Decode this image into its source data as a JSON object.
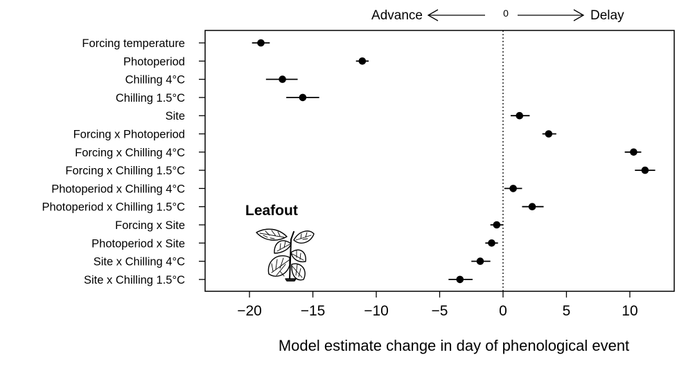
{
  "chart_data": {
    "type": "scatter",
    "subtype": "dot-and-whisker",
    "title": "",
    "xlabel": "Model estimate change in day of phenological event",
    "ylabel": "",
    "xlim": [
      -23.5,
      13.5
    ],
    "x_ticks": [
      -20,
      -15,
      -10,
      -5,
      0,
      5,
      10
    ],
    "x_tick_labels": [
      "−20",
      "−15",
      "−10",
      "−5",
      "0",
      "5",
      "10"
    ],
    "reference_line": {
      "x": 0,
      "style": "dotted"
    },
    "direction_labels": {
      "left": "Advance",
      "center": "0",
      "right": "Delay"
    },
    "annotation": "Leafout",
    "grid": false,
    "points": [
      {
        "label": "Forcing temperature",
        "estimate": -19.1,
        "lower": -19.8,
        "upper": -18.4
      },
      {
        "label": "Photoperiod",
        "estimate": -11.1,
        "lower": -11.6,
        "upper": -10.6
      },
      {
        "label": "Chilling 4°C",
        "estimate": -17.4,
        "lower": -18.7,
        "upper": -16.2
      },
      {
        "label": "Chilling 1.5°C",
        "estimate": -15.8,
        "lower": -17.1,
        "upper": -14.5
      },
      {
        "label": "Site",
        "estimate": 1.3,
        "lower": 0.6,
        "upper": 2.1
      },
      {
        "label": "Forcing x Photoperiod",
        "estimate": 3.6,
        "lower": 3.1,
        "upper": 4.2
      },
      {
        "label": "Forcing x Chilling 4°C",
        "estimate": 10.3,
        "lower": 9.6,
        "upper": 10.9
      },
      {
        "label": "Forcing x Chilling 1.5°C",
        "estimate": 11.2,
        "lower": 10.4,
        "upper": 12.0
      },
      {
        "label": "Photoperiod x Chilling 4°C",
        "estimate": 0.8,
        "lower": 0.1,
        "upper": 1.5
      },
      {
        "label": "Photoperiod x Chilling 1.5°C",
        "estimate": 2.3,
        "lower": 1.5,
        "upper": 3.2
      },
      {
        "label": "Forcing x Site",
        "estimate": -0.5,
        "lower": -1.0,
        "upper": 0.0
      },
      {
        "label": "Photoperiod x Site",
        "estimate": -0.9,
        "lower": -1.4,
        "upper": -0.4
      },
      {
        "label": "Site x Chilling 4°C",
        "estimate": -1.8,
        "lower": -2.5,
        "upper": -1.0
      },
      {
        "label": "Site x Chilling 1.5°C",
        "estimate": -3.4,
        "lower": -4.3,
        "upper": -2.4
      }
    ],
    "colors": {
      "point": "#000000",
      "whisker": "#000000",
      "frame": "#000000"
    },
    "icons": {
      "illustration": "seedling-icon"
    }
  }
}
